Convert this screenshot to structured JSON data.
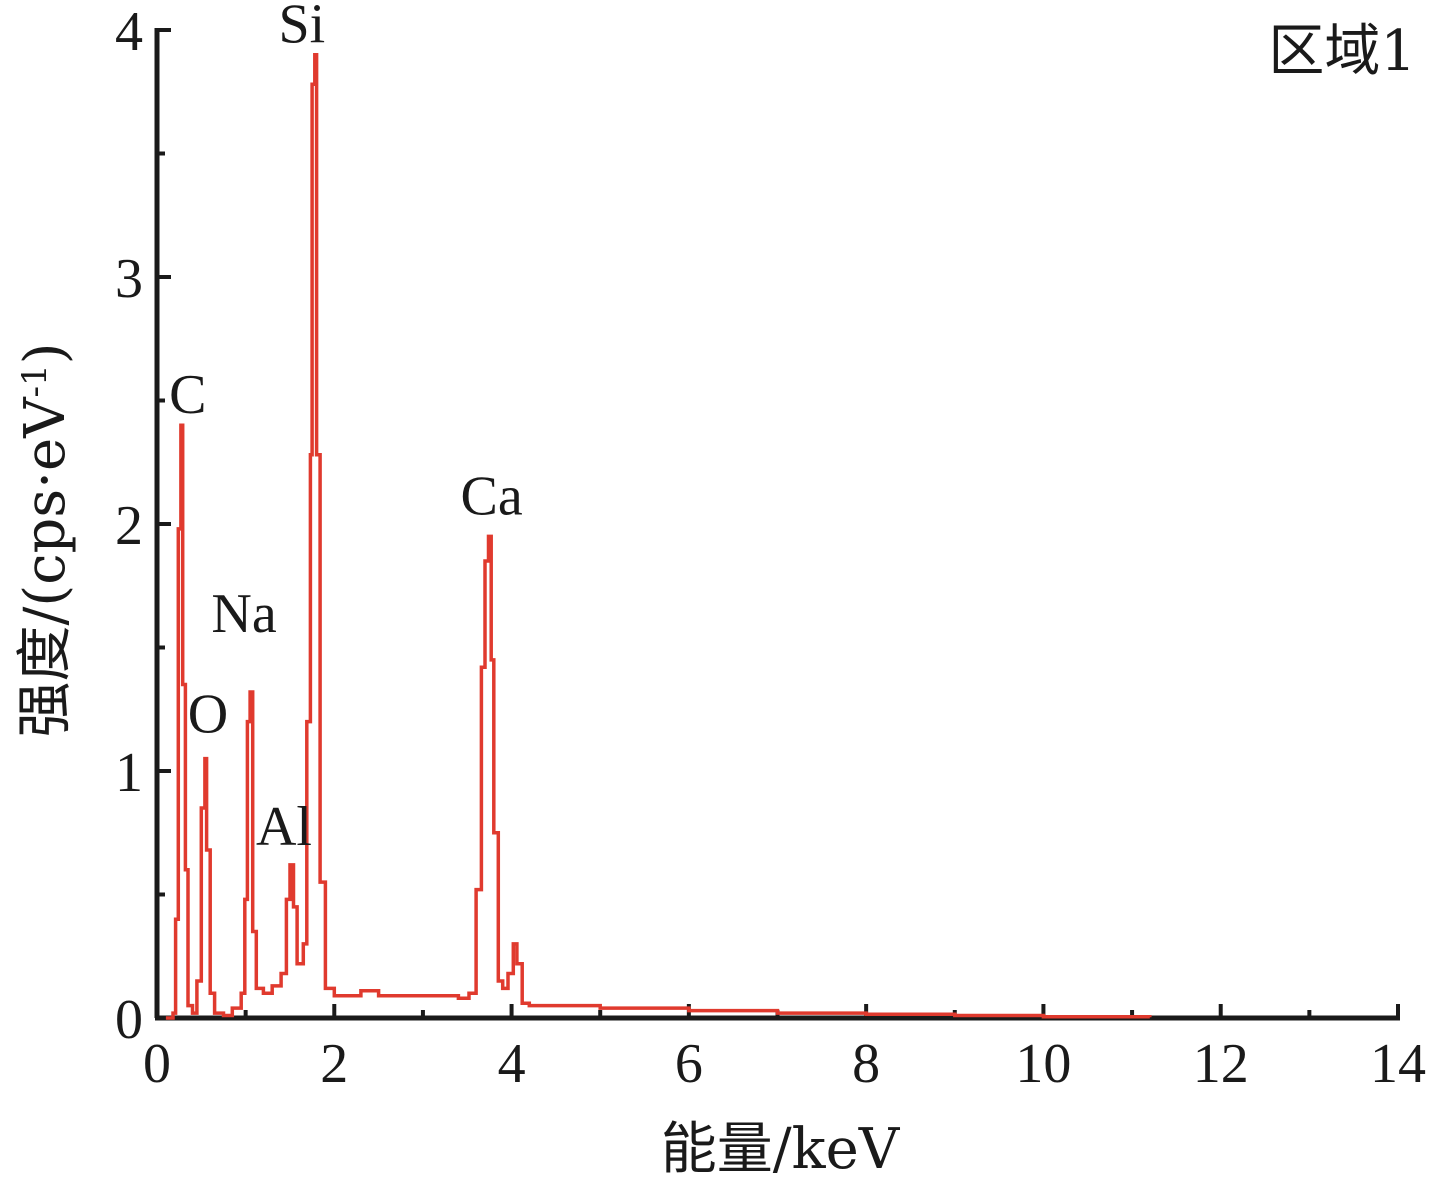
{
  "chart_data": {
    "type": "line",
    "title": "",
    "annotation": "区域1",
    "xlabel": "能量/keV",
    "ylabel": "强度/(cps·eV",
    "ylabel_superscript": "-1",
    "ylabel_close": ")",
    "xlim": [
      0,
      14
    ],
    "ylim": [
      0,
      4
    ],
    "xticks": [
      0,
      2,
      4,
      6,
      8,
      10,
      12,
      14
    ],
    "yticks": [
      0,
      1,
      2,
      3,
      4
    ],
    "grid": false,
    "line_color": "#e03a2e",
    "axis_color": "#1a1a1a",
    "peaks": [
      {
        "element": "C",
        "x": 0.28,
        "y": 2.4
      },
      {
        "element": "O",
        "x": 0.53,
        "y": 1.05
      },
      {
        "element": "Na",
        "x": 1.05,
        "y": 1.32
      },
      {
        "element": "Al",
        "x": 1.5,
        "y": 0.62
      },
      {
        "element": "Si",
        "x": 1.77,
        "y": 3.9
      },
      {
        "element": "Ca",
        "x": 3.73,
        "y": 1.95
      }
    ],
    "series": [
      {
        "points": [
          [
            0.1,
            0.0
          ],
          [
            0.18,
            0.02
          ],
          [
            0.21,
            0.4
          ],
          [
            0.24,
            1.98
          ],
          [
            0.27,
            2.4
          ],
          [
            0.29,
            1.35
          ],
          [
            0.32,
            0.6
          ],
          [
            0.35,
            0.05
          ],
          [
            0.4,
            0.02
          ],
          [
            0.45,
            0.15
          ],
          [
            0.5,
            0.85
          ],
          [
            0.54,
            1.05
          ],
          [
            0.56,
            0.68
          ],
          [
            0.6,
            0.1
          ],
          [
            0.65,
            0.02
          ],
          [
            0.75,
            0.01
          ],
          [
            0.85,
            0.04
          ],
          [
            0.95,
            0.1
          ],
          [
            0.99,
            0.48
          ],
          [
            1.02,
            1.2
          ],
          [
            1.05,
            1.32
          ],
          [
            1.08,
            0.35
          ],
          [
            1.12,
            0.12
          ],
          [
            1.2,
            0.1
          ],
          [
            1.3,
            0.13
          ],
          [
            1.4,
            0.18
          ],
          [
            1.46,
            0.48
          ],
          [
            1.5,
            0.62
          ],
          [
            1.54,
            0.45
          ],
          [
            1.58,
            0.22
          ],
          [
            1.65,
            0.3
          ],
          [
            1.69,
            1.2
          ],
          [
            1.73,
            2.28
          ],
          [
            1.75,
            3.78
          ],
          [
            1.78,
            3.9
          ],
          [
            1.8,
            2.28
          ],
          [
            1.84,
            0.55
          ],
          [
            1.9,
            0.12
          ],
          [
            2.0,
            0.09
          ],
          [
            2.2,
            0.09
          ],
          [
            2.3,
            0.11
          ],
          [
            2.5,
            0.09
          ],
          [
            3.0,
            0.09
          ],
          [
            3.4,
            0.08
          ],
          [
            3.52,
            0.1
          ],
          [
            3.6,
            0.52
          ],
          [
            3.66,
            1.42
          ],
          [
            3.7,
            1.85
          ],
          [
            3.74,
            1.95
          ],
          [
            3.77,
            1.45
          ],
          [
            3.8,
            0.75
          ],
          [
            3.85,
            0.15
          ],
          [
            3.9,
            0.12
          ],
          [
            3.96,
            0.18
          ],
          [
            4.02,
            0.3
          ],
          [
            4.06,
            0.22
          ],
          [
            4.12,
            0.06
          ],
          [
            4.2,
            0.05
          ],
          [
            4.5,
            0.05
          ],
          [
            5.0,
            0.04
          ],
          [
            6.0,
            0.03
          ],
          [
            7.0,
            0.02
          ],
          [
            8.0,
            0.015
          ],
          [
            9.0,
            0.01
          ],
          [
            10.0,
            0.005
          ],
          [
            11.2,
            0.003
          ]
        ]
      }
    ]
  }
}
